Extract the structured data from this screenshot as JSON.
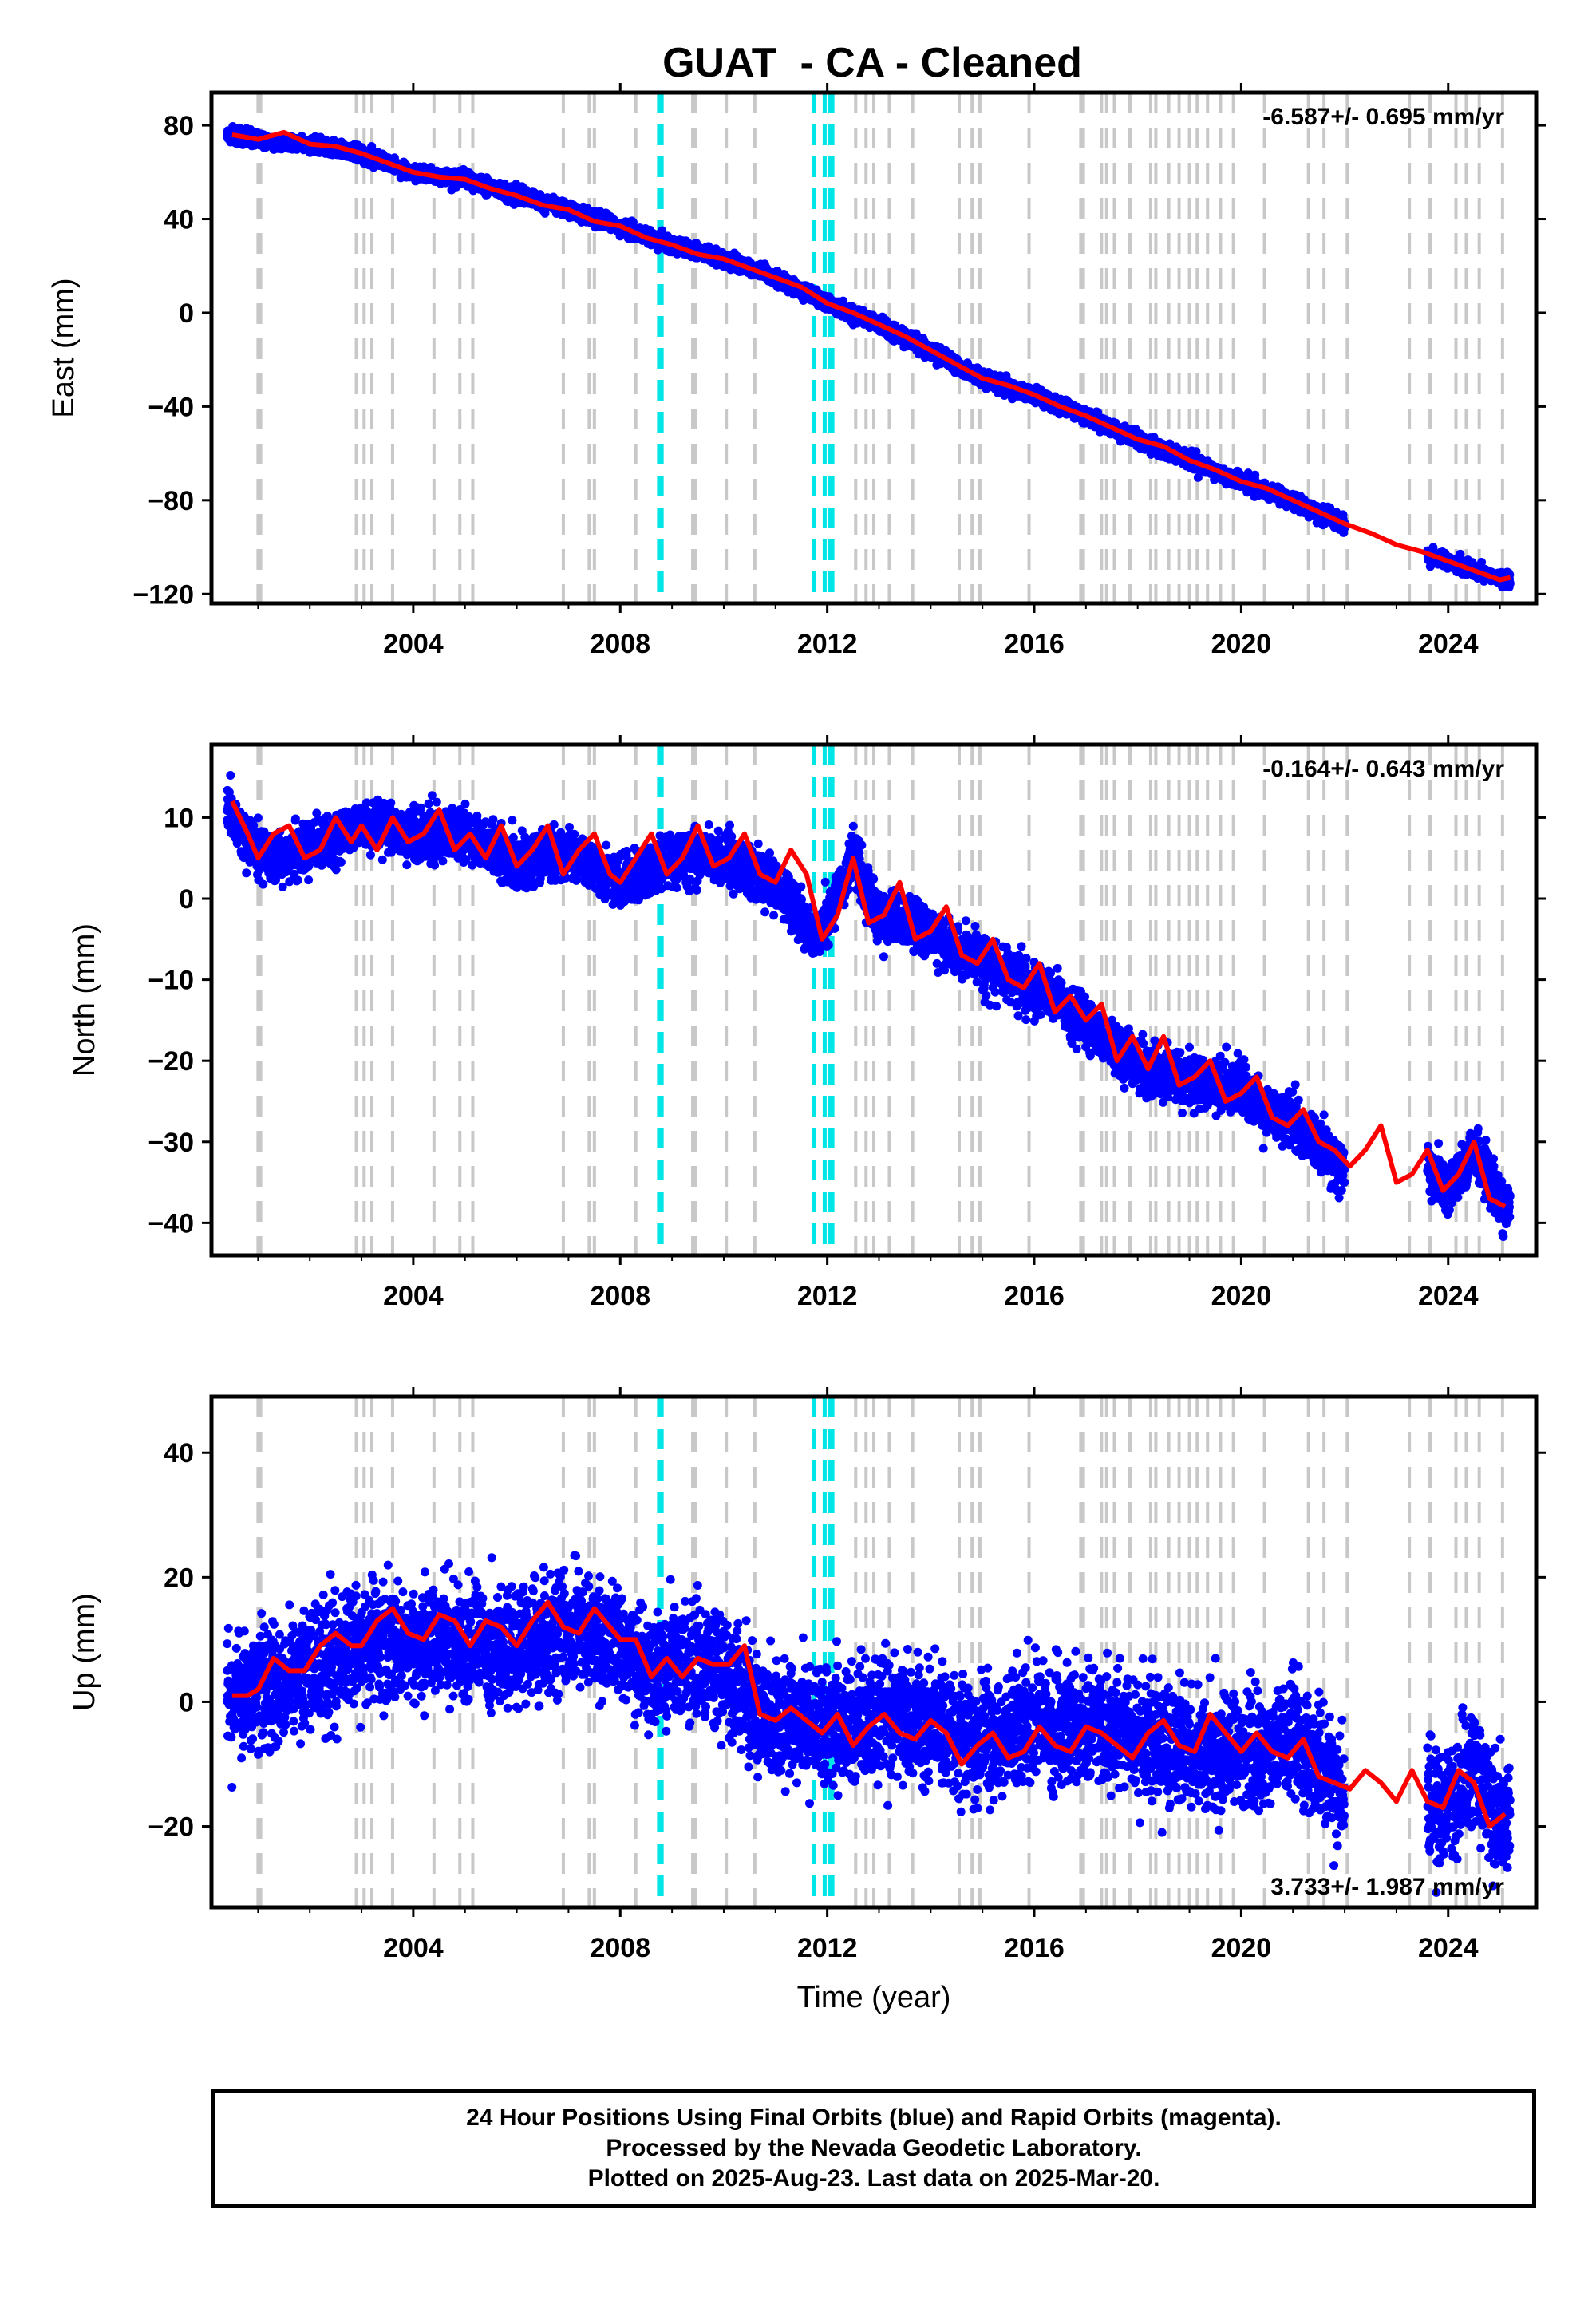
{
  "title": "GUAT  - CA - Cleaned",
  "footer": {
    "line1": "24 Hour Positions Using Final Orbits (blue) and Rapid Orbits (magenta).",
    "line2": "Processed by the Nevada Geodetic Laboratory.",
    "line3": "Plotted on 2025-Aug-23. Last data on 2025-Mar-20."
  },
  "colors": {
    "data": "#0000ff",
    "model": "#ff0000",
    "equipment_change": "#c8c8c8",
    "earthquake": "#00e5e5",
    "frame": "#000000"
  },
  "chart_data": [
    {
      "type": "scatter",
      "component": "east",
      "title": "GUAT  - CA - Cleaned",
      "xlabel": "",
      "ylabel": "East (mm)",
      "xlim": [
        2000.1,
        2025.7
      ],
      "ylim": [
        -124,
        94
      ],
      "xticks": [
        2004,
        2008,
        2012,
        2016,
        2020,
        2024
      ],
      "xtick_labels": [
        "2004",
        "2008",
        "2012",
        "2016",
        "2020",
        "2024"
      ],
      "yticks": [
        80,
        40,
        0,
        -40,
        -80,
        -120
      ],
      "ytick_labels": [
        "80",
        "40",
        "0",
        "−40",
        "−80",
        "−120"
      ],
      "rate_label": "-6.587+/- 0.695 mm/yr",
      "rate_position": "top-right",
      "grid": false,
      "series": [
        {
          "kind": "model",
          "x": [
            2000.5,
            2001.0,
            2001.5,
            2002.0,
            2002.5,
            2003.0,
            2003.5,
            2004.0,
            2004.5,
            2005.0,
            2005.5,
            2006.0,
            2006.5,
            2007.0,
            2007.5,
            2008.0,
            2008.5,
            2009.0,
            2009.5,
            2010.0,
            2010.5,
            2011.0,
            2011.5,
            2012.0,
            2012.5,
            2013.0,
            2013.5,
            2014.0,
            2014.5,
            2015.0,
            2015.5,
            2016.0,
            2016.5,
            2017.0,
            2017.5,
            2018.0,
            2018.5,
            2019.0,
            2019.5,
            2020.0,
            2020.5,
            2021.0,
            2021.5,
            2022.0,
            2022.5,
            2023.0,
            2023.5,
            2024.0,
            2024.5,
            2025.0,
            2025.2
          ],
          "y": [
            76,
            74,
            77,
            72,
            71,
            68,
            64,
            60,
            58,
            57,
            53,
            50,
            46,
            44,
            39,
            37,
            32,
            29,
            25,
            23,
            19,
            15,
            11,
            4,
            0,
            -5,
            -10,
            -16,
            -22,
            -28,
            -31,
            -35,
            -40,
            -44,
            -49,
            -54,
            -57,
            -63,
            -67,
            -72,
            -75,
            -80,
            -85,
            -90,
            -94,
            -99,
            -102,
            -106,
            -110,
            -114,
            -113
          ]
        },
        {
          "kind": "data_envelope",
          "x": [
            2000.4,
            2001.0,
            2002.0,
            2003.0,
            2004.0,
            2005.0,
            2006.0,
            2007.0,
            2008.0,
            2009.0,
            2010.0,
            2011.0,
            2012.0,
            2013.0,
            2014.0,
            2015.0,
            2016.0,
            2017.0,
            2018.0,
            2019.0,
            2020.0,
            2021.0,
            2022.0
          ],
          "y": [
            76,
            74,
            72,
            68,
            60,
            57,
            50,
            44,
            37,
            29,
            23,
            15,
            4,
            -5,
            -16,
            -28,
            -35,
            -44,
            -54,
            -63,
            -72,
            -80,
            -90
          ]
        },
        {
          "kind": "data_envelope",
          "x": [
            2023.6,
            2024.0,
            2024.5,
            2025.0,
            2025.2
          ],
          "y": [
            -104,
            -106,
            -110,
            -114,
            -113
          ]
        }
      ]
    },
    {
      "type": "scatter",
      "component": "north",
      "xlabel": "",
      "ylabel": "North (mm)",
      "xlim": [
        2000.1,
        2025.7
      ],
      "ylim": [
        -44,
        19
      ],
      "xticks": [
        2004,
        2008,
        2012,
        2016,
        2020,
        2024
      ],
      "xtick_labels": [
        "2004",
        "2008",
        "2012",
        "2016",
        "2020",
        "2024"
      ],
      "yticks": [
        10,
        0,
        -10,
        -20,
        -30,
        -40
      ],
      "ytick_labels": [
        "10",
        "0",
        "−10",
        "−20",
        "−30",
        "−40"
      ],
      "rate_label": "-0.164+/- 0.643 mm/yr",
      "rate_position": "top-right",
      "grid": false,
      "series": [
        {
          "kind": "model",
          "x": [
            2000.5,
            2000.8,
            2001.0,
            2001.3,
            2001.6,
            2001.9,
            2002.2,
            2002.5,
            2002.8,
            2003.0,
            2003.3,
            2003.6,
            2003.9,
            2004.2,
            2004.5,
            2004.8,
            2005.1,
            2005.4,
            2005.7,
            2006.0,
            2006.3,
            2006.6,
            2006.9,
            2007.2,
            2007.5,
            2007.8,
            2008.0,
            2008.3,
            2008.6,
            2008.9,
            2009.2,
            2009.5,
            2009.8,
            2010.1,
            2010.4,
            2010.7,
            2011.0,
            2011.3,
            2011.6,
            2011.9,
            2012.2,
            2012.5,
            2012.8,
            2013.1,
            2013.4,
            2013.7,
            2014.0,
            2014.3,
            2014.6,
            2014.9,
            2015.2,
            2015.5,
            2015.8,
            2016.1,
            2016.4,
            2016.7,
            2017.0,
            2017.3,
            2017.6,
            2017.9,
            2018.2,
            2018.5,
            2018.8,
            2019.1,
            2019.4,
            2019.7,
            2020.0,
            2020.3,
            2020.6,
            2020.9,
            2021.2,
            2021.5,
            2021.8,
            2022.1,
            2022.4,
            2022.7,
            2023.0,
            2023.3,
            2023.6,
            2023.9,
            2024.2,
            2024.5,
            2024.8,
            2025.1
          ],
          "y": [
            12,
            8,
            5,
            8,
            9,
            5,
            6,
            10,
            7,
            9,
            6,
            10,
            7,
            8,
            11,
            6,
            8,
            5,
            9,
            4,
            6,
            9,
            3,
            6,
            8,
            3,
            2,
            5,
            8,
            3,
            5,
            9,
            4,
            5,
            8,
            3,
            2,
            6,
            3,
            -5,
            -2,
            5,
            -3,
            -2,
            2,
            -5,
            -4,
            -1,
            -7,
            -8,
            -5,
            -10,
            -11,
            -8,
            -14,
            -12,
            -15,
            -13,
            -20,
            -17,
            -21,
            -17,
            -23,
            -22,
            -20,
            -25,
            -24,
            -22,
            -27,
            -28,
            -26,
            -30,
            -31,
            -33,
            -31,
            -28,
            -35,
            -34,
            -31,
            -36,
            -34,
            -30,
            -37,
            -38
          ]
        },
        {
          "kind": "data_envelope",
          "x": [
            2000.4,
            2001.0,
            2002.0,
            2003.0,
            2004.0,
            2005.0,
            2006.0,
            2007.0,
            2008.0,
            2009.0,
            2010.0,
            2011.0,
            2011.8,
            2012.5,
            2013.0,
            2014.0,
            2015.0,
            2016.0,
            2017.0,
            2018.0,
            2019.0,
            2020.0,
            2021.0,
            2022.0
          ],
          "y": [
            12,
            5,
            6,
            9,
            8,
            8,
            4,
            6,
            2,
            5,
            5,
            2,
            -5,
            5,
            -2,
            -4,
            -8,
            -11,
            -15,
            -21,
            -22,
            -24,
            -28,
            -33
          ]
        },
        {
          "kind": "data_envelope",
          "x": [
            2023.6,
            2024.0,
            2024.5,
            2025.0,
            2025.2
          ],
          "y": [
            -33,
            -36,
            -31,
            -37,
            -38
          ]
        }
      ]
    },
    {
      "type": "scatter",
      "component": "up",
      "xlabel": "Time (year)",
      "ylabel": "Up (mm)",
      "xlim": [
        2000.1,
        2025.7
      ],
      "ylim": [
        -33,
        49
      ],
      "xticks": [
        2004,
        2008,
        2012,
        2016,
        2020,
        2024
      ],
      "xtick_labels": [
        "2004",
        "2008",
        "2012",
        "2016",
        "2020",
        "2024"
      ],
      "yticks": [
        40,
        20,
        0,
        -20
      ],
      "ytick_labels": [
        "40",
        "20",
        "0",
        "−20"
      ],
      "rate_label": "3.733+/- 1.987 mm/yr",
      "rate_position": "bottom-right",
      "grid": false,
      "series": [
        {
          "kind": "model",
          "x": [
            2000.5,
            2000.8,
            2001.0,
            2001.3,
            2001.6,
            2001.9,
            2002.2,
            2002.5,
            2002.8,
            2003.0,
            2003.3,
            2003.6,
            2003.9,
            2004.2,
            2004.5,
            2004.8,
            2005.1,
            2005.4,
            2005.7,
            2006.0,
            2006.3,
            2006.6,
            2006.9,
            2007.2,
            2007.5,
            2007.8,
            2008.0,
            2008.3,
            2008.6,
            2008.9,
            2009.2,
            2009.5,
            2009.8,
            2010.1,
            2010.4,
            2010.7,
            2011.0,
            2011.3,
            2011.6,
            2011.9,
            2012.2,
            2012.5,
            2012.8,
            2013.1,
            2013.4,
            2013.7,
            2014.0,
            2014.3,
            2014.6,
            2014.9,
            2015.2,
            2015.5,
            2015.8,
            2016.1,
            2016.4,
            2016.7,
            2017.0,
            2017.3,
            2017.6,
            2017.9,
            2018.2,
            2018.5,
            2018.8,
            2019.1,
            2019.4,
            2019.7,
            2020.0,
            2020.3,
            2020.6,
            2020.9,
            2021.2,
            2021.5,
            2021.8,
            2022.1,
            2022.4,
            2022.7,
            2023.0,
            2023.3,
            2023.6,
            2023.9,
            2024.2,
            2024.5,
            2024.8,
            2025.1
          ],
          "y": [
            1,
            1,
            2,
            7,
            5,
            5,
            9,
            11,
            9,
            9,
            13,
            15,
            11,
            10,
            14,
            13,
            9,
            13,
            12,
            9,
            13,
            16,
            12,
            11,
            15,
            12,
            10,
            10,
            4,
            7,
            4,
            7,
            6,
            6,
            9,
            -2,
            -3,
            -1,
            -3,
            -5,
            -2,
            -7,
            -4,
            -2,
            -5,
            -6,
            -3,
            -5,
            -10,
            -7,
            -5,
            -9,
            -8,
            -4,
            -7,
            -8,
            -4,
            -5,
            -7,
            -9,
            -5,
            -3,
            -7,
            -8,
            -2,
            -5,
            -8,
            -5,
            -8,
            -9,
            -6,
            -12,
            -13,
            -14,
            -11,
            -13,
            -16,
            -11,
            -16,
            -17,
            -11,
            -13,
            -20,
            -18
          ]
        },
        {
          "kind": "data_envelope",
          "x": [
            2000.4,
            2001.0,
            2002.0,
            2003.0,
            2004.0,
            2005.0,
            2006.0,
            2007.0,
            2008.0,
            2008.6,
            2009.0,
            2010.0,
            2010.7,
            2011.0,
            2012.0,
            2013.0,
            2014.0,
            2015.0,
            2016.0,
            2017.0,
            2018.0,
            2019.0,
            2020.0,
            2021.0,
            2022.0
          ],
          "y": [
            1,
            2,
            5,
            9,
            10,
            9,
            9,
            11,
            10,
            4,
            7,
            6,
            -2,
            -3,
            -5,
            -2,
            -3,
            -7,
            -4,
            -4,
            -5,
            -8,
            -8,
            -6,
            -14
          ]
        },
        {
          "kind": "data_envelope",
          "x": [
            2023.6,
            2024.0,
            2024.5,
            2025.0,
            2025.2
          ],
          "y": [
            -16,
            -17,
            -11,
            -20,
            -18
          ]
        }
      ]
    }
  ],
  "equipment_changes": [
    2001.0,
    2001.05,
    2002.9,
    2003.05,
    2003.2,
    2003.6,
    2004.4,
    2004.9,
    2005.15,
    2006.9,
    2007.4,
    2007.5,
    2008.3,
    2009.4,
    2009.45,
    2010.05,
    2010.6,
    2012.55,
    2012.75,
    2012.9,
    2013.2,
    2013.65,
    2014.55,
    2014.8,
    2014.95,
    2015.9,
    2016.9,
    2016.95,
    2017.3,
    2017.4,
    2017.55,
    2017.85,
    2018.25,
    2018.35,
    2018.6,
    2018.8,
    2019.0,
    2019.15,
    2019.35,
    2019.6,
    2019.85,
    2020.45,
    2021.3,
    2021.6,
    2022.05,
    2023.25,
    2023.65,
    2024.15,
    2024.35,
    2024.6,
    2025.05
  ],
  "earthquakes": [
    2008.75,
    2008.8,
    2011.75,
    2011.95,
    2012.05,
    2012.1
  ]
}
